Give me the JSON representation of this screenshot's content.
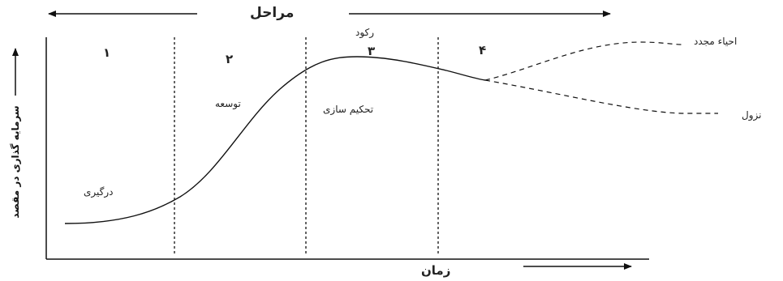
{
  "header": {
    "title": "مراحل"
  },
  "stages": [
    {
      "number": "۱",
      "label": "درگیری"
    },
    {
      "number": "۲",
      "label": "توسعه"
    },
    {
      "number": "۳",
      "label": "تحکیم سازی",
      "peak_label": "رکود"
    },
    {
      "number": "۴"
    }
  ],
  "outcomes": {
    "revival": "احیاء مجدد",
    "decline": "نزول"
  },
  "axes": {
    "x_label": "زمان",
    "y_label": "سرمایه گذاری در مقصد"
  }
}
